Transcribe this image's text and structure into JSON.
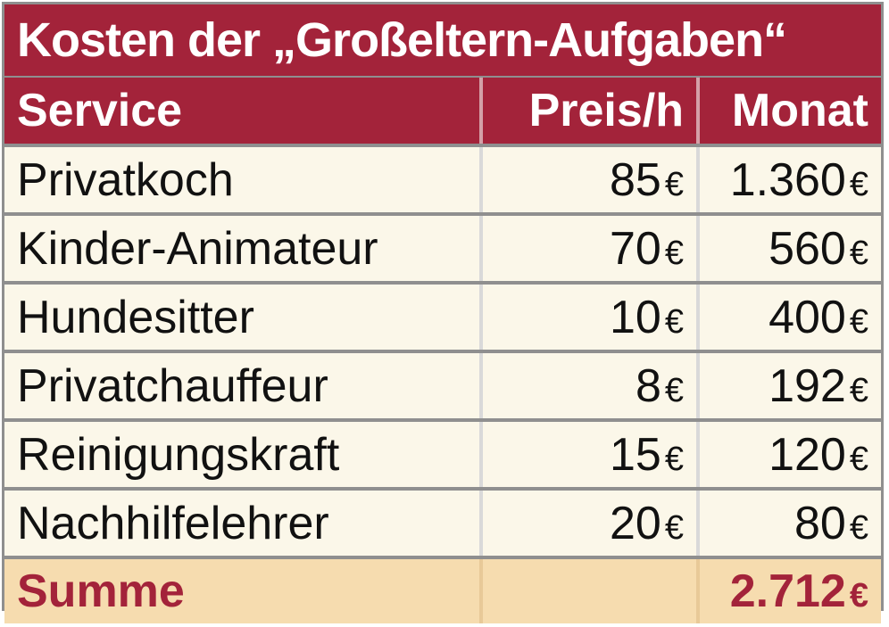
{
  "chart_data": {
    "type": "table",
    "title": "Kosten der „Großeltern-Aufgaben“",
    "columns": [
      "Service",
      "Preis/h",
      "Monat"
    ],
    "currency": "€",
    "rows": [
      {
        "service": "Privatkoch",
        "price": "85",
        "month": "1.360"
      },
      {
        "service": "Kinder-Animateur",
        "price": "70",
        "month": "560"
      },
      {
        "service": "Hundesitter",
        "price": "10",
        "month": "400"
      },
      {
        "service": "Privatchauffeur",
        "price": "8",
        "month": "192"
      },
      {
        "service": "Reinigungskraft",
        "price": "15",
        "month": "120"
      },
      {
        "service": "Nachhilfelehrer",
        "price": "20",
        "month": "80"
      }
    ],
    "total": {
      "label": "Summe",
      "month": "2.712"
    }
  },
  "colors": {
    "header": "#a3233a",
    "row_bg": "#fbf7e9",
    "sum_bg": "#f6dcaf",
    "separator": "#8f8f8f"
  }
}
